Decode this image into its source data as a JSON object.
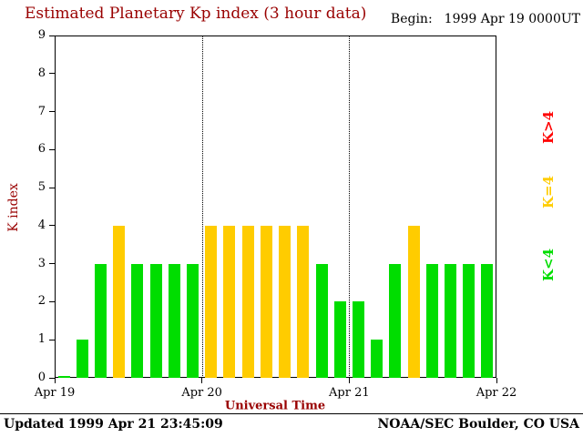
{
  "header": {
    "title": "Estimated Planetary Kp index (3 hour data)",
    "begin_label": "Begin:",
    "begin_value": "1999 Apr 19 0000UT"
  },
  "footer": {
    "updated": "Updated 1999 Apr 21 23:45:09",
    "source": "NOAA/SEC Boulder, CO USA"
  },
  "colors": {
    "accent_text": "#990000",
    "axis": "#000000",
    "background": "#ffffff"
  },
  "chart_data": {
    "type": "bar",
    "title": "Estimated Planetary Kp index (3 hour data)",
    "xlabel": "Universal Time",
    "ylabel": "K index",
    "ylim": [
      0,
      9
    ],
    "y_ticks": [
      0,
      1,
      2,
      3,
      4,
      5,
      6,
      7,
      8,
      9
    ],
    "x_ticks": [
      "Apr 19",
      "Apr 20",
      "Apr 21",
      "Apr 22"
    ],
    "interval_hours": 3,
    "bars_per_day": 8,
    "values": [
      0,
      1,
      3,
      4,
      3,
      3,
      3,
      3,
      4,
      4,
      4,
      4,
      4,
      4,
      3,
      2,
      2,
      1,
      3,
      4,
      3,
      3,
      3,
      3
    ],
    "colors": {
      "below4": "#00dd00",
      "equal4": "#ffcc00",
      "above4": "#ff0000"
    },
    "legend": [
      {
        "label": "K>4",
        "color": "#ff0000"
      },
      {
        "label": "K=4",
        "color": "#ffcc00"
      },
      {
        "label": "K<4",
        "color": "#00dd00"
      }
    ],
    "legend_position": "right",
    "grid": "vertical dotted lines at day boundaries"
  }
}
